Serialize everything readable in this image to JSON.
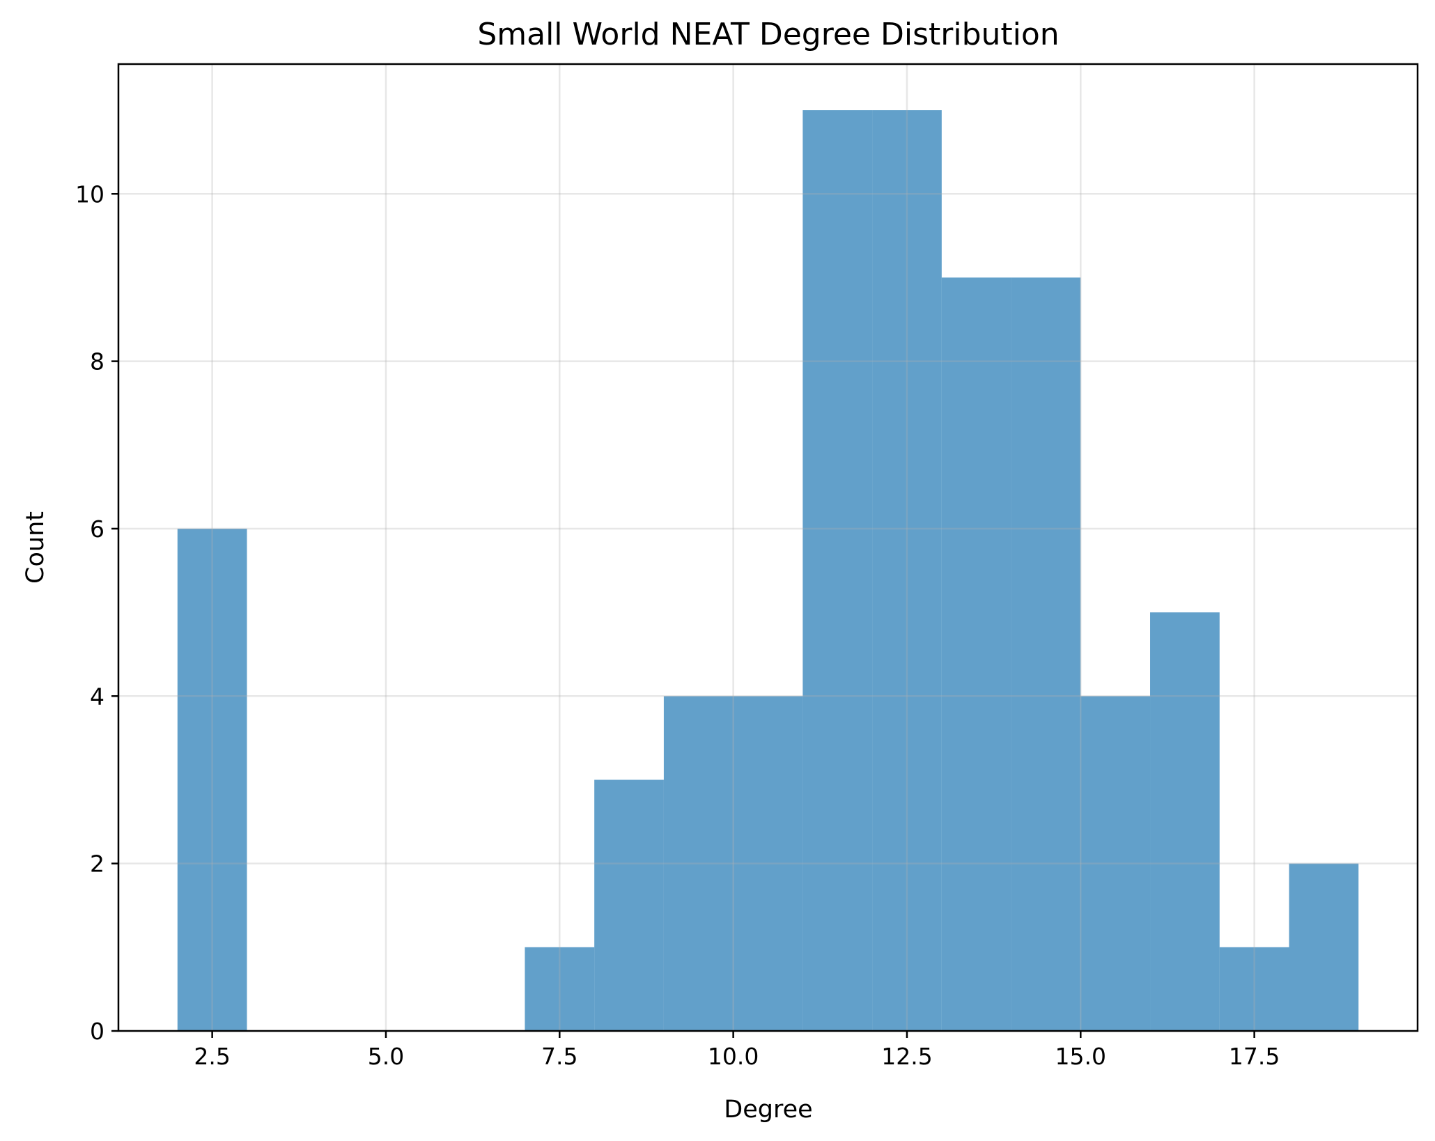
{
  "chart_data": {
    "type": "bar",
    "title": "Small World NEAT Degree Distribution",
    "xlabel": "Degree",
    "ylabel": "Count",
    "bar_color": "#1f77b4",
    "grid": true,
    "xlim": [
      1.15,
      19.85
    ],
    "ylim": [
      0,
      11.55
    ],
    "xticks": [
      2.5,
      5.0,
      7.5,
      10.0,
      12.5,
      15.0,
      17.5
    ],
    "xtick_labels": [
      "2.5",
      "5.0",
      "7.5",
      "10.0",
      "12.5",
      "15.0",
      "17.5"
    ],
    "yticks": [
      0,
      2,
      4,
      6,
      8,
      10
    ],
    "ytick_labels": [
      "0",
      "2",
      "4",
      "6",
      "8",
      "10"
    ],
    "bins": [
      {
        "start": 2,
        "end": 3,
        "count": 6
      },
      {
        "start": 3,
        "end": 4,
        "count": 0
      },
      {
        "start": 4,
        "end": 5,
        "count": 0
      },
      {
        "start": 5,
        "end": 6,
        "count": 0
      },
      {
        "start": 6,
        "end": 7,
        "count": 0
      },
      {
        "start": 7,
        "end": 8,
        "count": 1
      },
      {
        "start": 8,
        "end": 9,
        "count": 3
      },
      {
        "start": 9,
        "end": 10,
        "count": 4
      },
      {
        "start": 10,
        "end": 11,
        "count": 4
      },
      {
        "start": 11,
        "end": 12,
        "count": 11
      },
      {
        "start": 12,
        "end": 13,
        "count": 11
      },
      {
        "start": 13,
        "end": 14,
        "count": 9
      },
      {
        "start": 14,
        "end": 15,
        "count": 9
      },
      {
        "start": 15,
        "end": 16,
        "count": 4
      },
      {
        "start": 16,
        "end": 17,
        "count": 5
      },
      {
        "start": 17,
        "end": 18,
        "count": 1
      },
      {
        "start": 18,
        "end": 19,
        "count": 2
      }
    ]
  }
}
